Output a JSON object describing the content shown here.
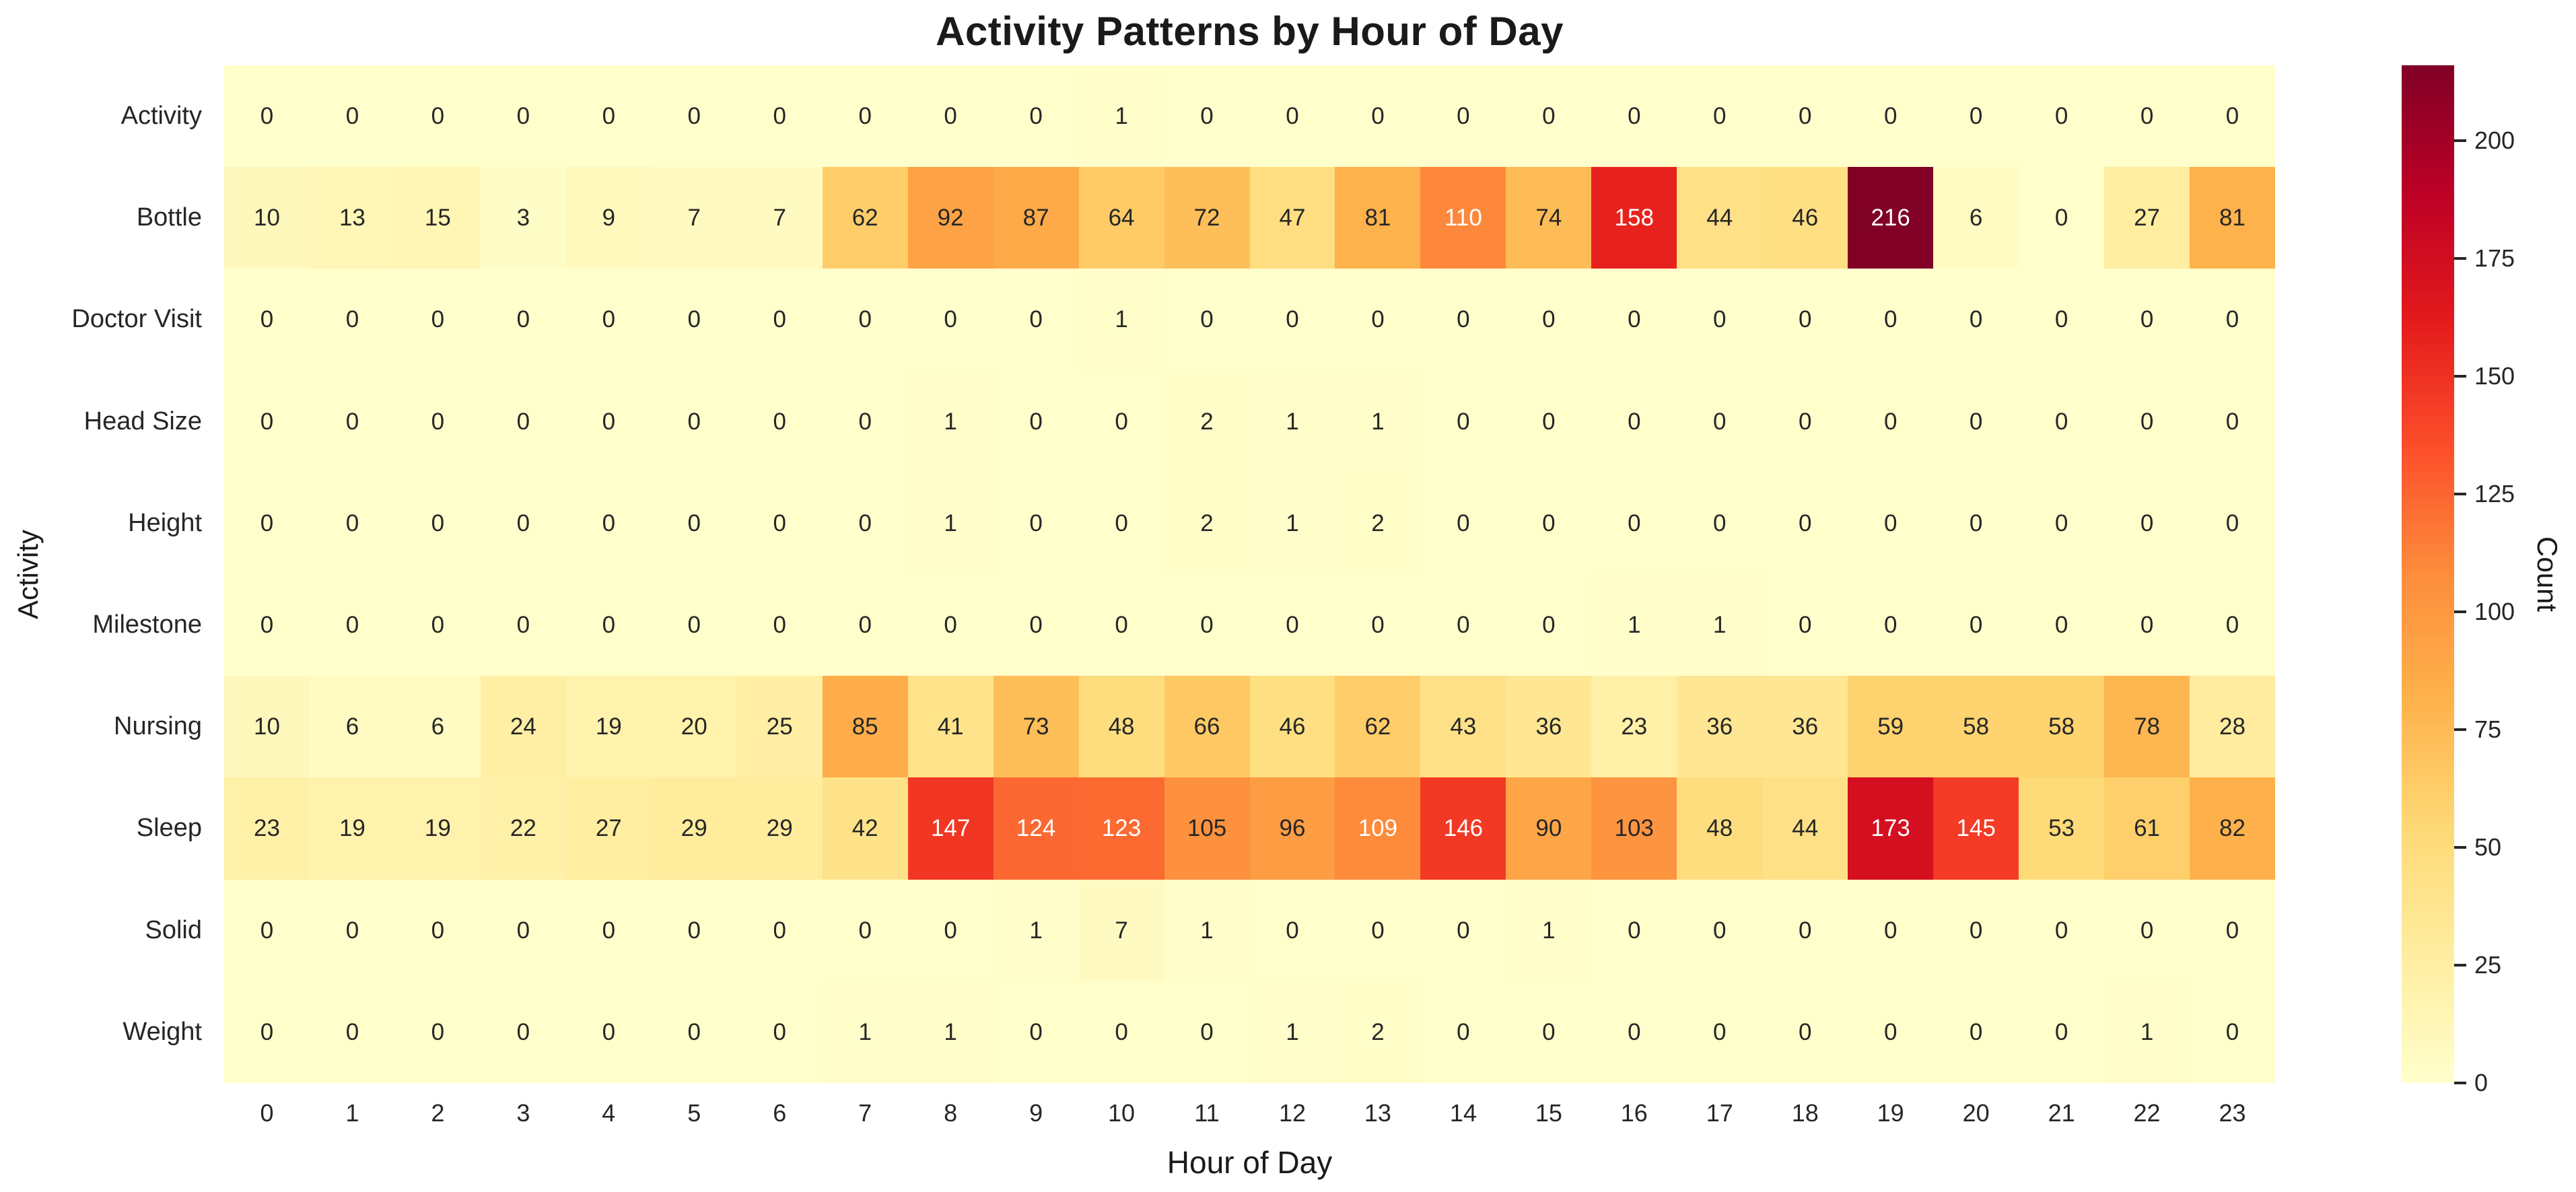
{
  "title": "Activity Patterns by Hour of Day",
  "chart_data": {
    "type": "heatmap",
    "title": "Activity Patterns by Hour of Day",
    "xlabel": "Hour of Day",
    "ylabel": "Activity",
    "x_categories": [
      "0",
      "1",
      "2",
      "3",
      "4",
      "5",
      "6",
      "7",
      "8",
      "9",
      "10",
      "11",
      "12",
      "13",
      "14",
      "15",
      "16",
      "17",
      "18",
      "19",
      "20",
      "21",
      "22",
      "23"
    ],
    "y_categories": [
      "Activity",
      "Bottle",
      "Doctor Visit",
      "Head Size",
      "Height",
      "Milestone",
      "Nursing",
      "Sleep",
      "Solid",
      "Weight"
    ],
    "series": [
      {
        "name": "Activity",
        "values": [
          0,
          0,
          0,
          0,
          0,
          0,
          0,
          0,
          0,
          0,
          1,
          0,
          0,
          0,
          0,
          0,
          0,
          0,
          0,
          0,
          0,
          0,
          0,
          0
        ]
      },
      {
        "name": "Bottle",
        "values": [
          10,
          13,
          15,
          3,
          9,
          7,
          7,
          62,
          92,
          87,
          64,
          72,
          47,
          81,
          110,
          74,
          158,
          44,
          46,
          216,
          6,
          0,
          27,
          81
        ]
      },
      {
        "name": "Doctor Visit",
        "values": [
          0,
          0,
          0,
          0,
          0,
          0,
          0,
          0,
          0,
          0,
          1,
          0,
          0,
          0,
          0,
          0,
          0,
          0,
          0,
          0,
          0,
          0,
          0,
          0
        ]
      },
      {
        "name": "Head Size",
        "values": [
          0,
          0,
          0,
          0,
          0,
          0,
          0,
          0,
          1,
          0,
          0,
          2,
          1,
          1,
          0,
          0,
          0,
          0,
          0,
          0,
          0,
          0,
          0,
          0
        ]
      },
      {
        "name": "Height",
        "values": [
          0,
          0,
          0,
          0,
          0,
          0,
          0,
          0,
          1,
          0,
          0,
          2,
          1,
          2,
          0,
          0,
          0,
          0,
          0,
          0,
          0,
          0,
          0,
          0
        ]
      },
      {
        "name": "Milestone",
        "values": [
          0,
          0,
          0,
          0,
          0,
          0,
          0,
          0,
          0,
          0,
          0,
          0,
          0,
          0,
          0,
          0,
          1,
          1,
          0,
          0,
          0,
          0,
          0,
          0
        ]
      },
      {
        "name": "Nursing",
        "values": [
          10,
          6,
          6,
          24,
          19,
          20,
          25,
          85,
          41,
          73,
          48,
          66,
          46,
          62,
          43,
          36,
          23,
          36,
          36,
          59,
          58,
          58,
          78,
          28
        ]
      },
      {
        "name": "Sleep",
        "values": [
          23,
          19,
          19,
          22,
          27,
          29,
          29,
          42,
          147,
          124,
          123,
          105,
          96,
          109,
          146,
          90,
          103,
          48,
          44,
          173,
          145,
          53,
          61,
          82
        ]
      },
      {
        "name": "Solid",
        "values": [
          0,
          0,
          0,
          0,
          0,
          0,
          0,
          0,
          0,
          1,
          7,
          1,
          0,
          0,
          0,
          1,
          0,
          0,
          0,
          0,
          0,
          0,
          0,
          0
        ]
      },
      {
        "name": "Weight",
        "values": [
          0,
          0,
          0,
          0,
          0,
          0,
          0,
          1,
          1,
          0,
          0,
          0,
          1,
          2,
          0,
          0,
          0,
          0,
          0,
          0,
          0,
          0,
          1,
          0
        ]
      }
    ],
    "vmin": 0,
    "vmax": 216,
    "annotated": true,
    "grid_on": false,
    "colorbar": {
      "label": "Count",
      "ticks": [
        0,
        25,
        50,
        75,
        100,
        125,
        150,
        175,
        200
      ],
      "position": "right"
    },
    "colormap": {
      "name": "YlOrRd",
      "stops": [
        "#ffffcc",
        "#ffeda0",
        "#fed976",
        "#feb24c",
        "#fd8d3c",
        "#fc4e2a",
        "#e31a1c",
        "#bd0026",
        "#800026"
      ]
    },
    "annotation_colors": {
      "dark_text": "#262626",
      "light_text": "#ffffff",
      "luminance_threshold": 0.408
    }
  }
}
